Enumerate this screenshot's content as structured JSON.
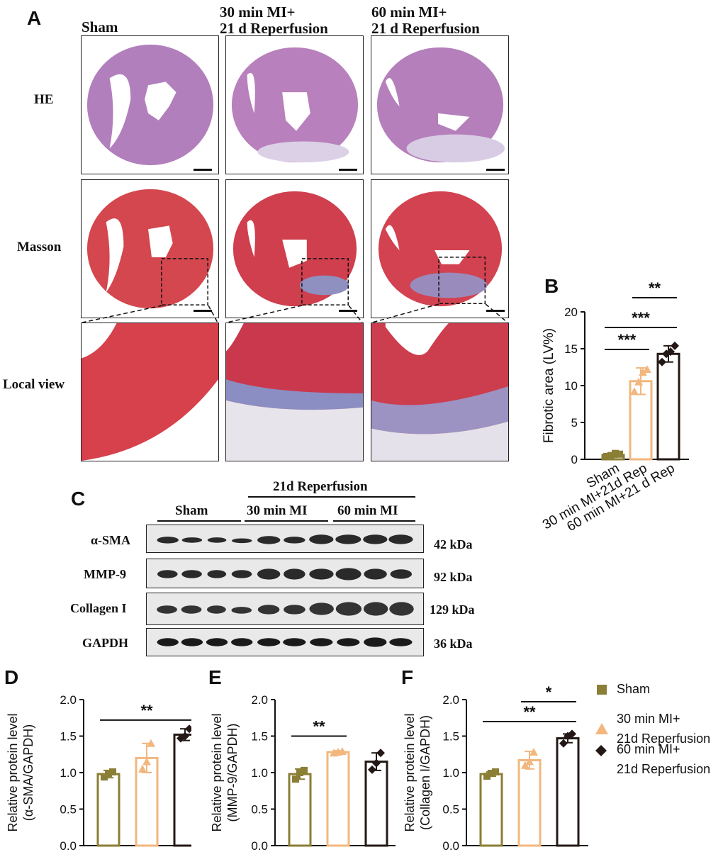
{
  "panel_a": {
    "letter": "A",
    "columns": [
      "Sham",
      [
        "30 min MI+",
        "21 d Reperfusion"
      ],
      [
        "60 min MI+",
        "21 d Reperfusion"
      ]
    ],
    "rows": [
      "HE",
      "Masson",
      "Local view"
    ]
  },
  "panel_b": {
    "letter": "B"
  },
  "panel_c": {
    "letter": "C",
    "group_header": "21d Reperfusion",
    "lane_groups": [
      "Sham",
      "30 min MI",
      "60 min MI"
    ],
    "proteins": [
      "α-SMA",
      "MMP-9",
      "Collagen I",
      "GAPDH"
    ],
    "kda": [
      "42 kDa",
      "92 kDa",
      "129 kDa",
      "36 kDa"
    ]
  },
  "panel_d": {
    "letter": "D"
  },
  "panel_e": {
    "letter": "E"
  },
  "panel_f": {
    "letter": "F"
  },
  "legend": {
    "items": [
      {
        "label": "Sham",
        "marker": "square",
        "color": "#8b7e35"
      },
      {
        "label": [
          "30 min MI+",
          "21d Reperfusion"
        ],
        "marker": "triangle",
        "color": "#f2b77e"
      },
      {
        "label": [
          "60 min MI+",
          "21d Reperfusion"
        ],
        "marker": "diamond",
        "color": "#231815"
      }
    ]
  },
  "colors": {
    "sham": "#8b7e35",
    "mi30": "#f2b77e",
    "mi60": "#231815",
    "he": "#b57fb5",
    "masson": "#d2464f",
    "collagen": "#7d8fc4"
  },
  "chart_data": [
    {
      "id": "B",
      "type": "bar",
      "categories": [
        "Sham",
        "30 min MI+21d Rep",
        "60 min MI+21 d Rep"
      ],
      "values": [
        0.6,
        10.6,
        14.3
      ],
      "errors": [
        0.3,
        1.8,
        1.1
      ],
      "points": [
        [
          0.4,
          0.5,
          0.8,
          0.7
        ],
        [
          9.2,
          10.5,
          11.8,
          12.2
        ],
        [
          13.2,
          14.3,
          14.6,
          15.4
        ]
      ],
      "ylabel": "Fibrotic area (LV%)",
      "ylim": [
        0,
        20
      ],
      "yticks": [
        "0",
        "5",
        "10",
        "15",
        "20"
      ],
      "significance": [
        {
          "from": 0,
          "to": 1,
          "label": "***"
        },
        {
          "from": 0,
          "to": 2,
          "label": "***"
        },
        {
          "from": 1,
          "to": 2,
          "label": "**"
        }
      ]
    },
    {
      "id": "D",
      "type": "bar",
      "categories": [
        "Sham",
        "30 min MI+21d Reperfusion",
        "60 min MI+21d Reperfusion"
      ],
      "values": [
        0.98,
        1.2,
        1.52
      ],
      "errors": [
        0.05,
        0.2,
        0.08
      ],
      "points": [
        [
          0.94,
          0.99,
          1.01
        ],
        [
          1.05,
          1.15,
          1.4
        ],
        [
          1.47,
          1.5,
          1.6
        ]
      ],
      "ylabel": [
        "Relative protein level",
        "(α-SMA/GAPDH)"
      ],
      "ylim": [
        0,
        2
      ],
      "yticks": [
        "0.0",
        "0.5",
        "1.0",
        "1.5",
        "2.0"
      ],
      "significance": [
        {
          "from": 0,
          "to": 2,
          "label": "**"
        }
      ]
    },
    {
      "id": "E",
      "type": "bar",
      "categories": [
        "Sham",
        "30 min MI+21d Reperfusion",
        "60 min MI+21d Reperfusion"
      ],
      "values": [
        0.98,
        1.28,
        1.15
      ],
      "errors": [
        0.07,
        0.02,
        0.12
      ],
      "points": [
        [
          0.91,
          1.0,
          1.03
        ],
        [
          1.27,
          1.28,
          1.29
        ],
        [
          1.04,
          1.13,
          1.27
        ]
      ],
      "ylabel": [
        "Relative protein level",
        "(MMP-9/GAPDH)"
      ],
      "ylim": [
        0,
        2
      ],
      "yticks": [
        "0.0",
        "0.5",
        "1.0",
        "1.5",
        "2.0"
      ],
      "significance": [
        {
          "from": 0,
          "to": 1,
          "label": "**"
        }
      ]
    },
    {
      "id": "F",
      "type": "bar",
      "categories": [
        "Sham",
        "30 min MI+21d Reperfusion",
        "60 min MI+21d Reperfusion"
      ],
      "values": [
        0.98,
        1.17,
        1.47
      ],
      "errors": [
        0.03,
        0.12,
        0.06
      ],
      "points": [
        [
          0.95,
          0.99,
          1.01
        ],
        [
          1.1,
          1.15,
          1.28
        ],
        [
          1.4,
          1.5,
          1.53
        ]
      ],
      "ylabel": [
        "Relative protein level",
        "(Collagen I/GAPDH)"
      ],
      "ylim": [
        0,
        2
      ],
      "yticks": [
        "0.0",
        "0.5",
        "1.0",
        "1.5",
        "2.0"
      ],
      "significance": [
        {
          "from": 0,
          "to": 2,
          "label": "**"
        },
        {
          "from": 1,
          "to": 2,
          "label": "*"
        }
      ]
    }
  ]
}
